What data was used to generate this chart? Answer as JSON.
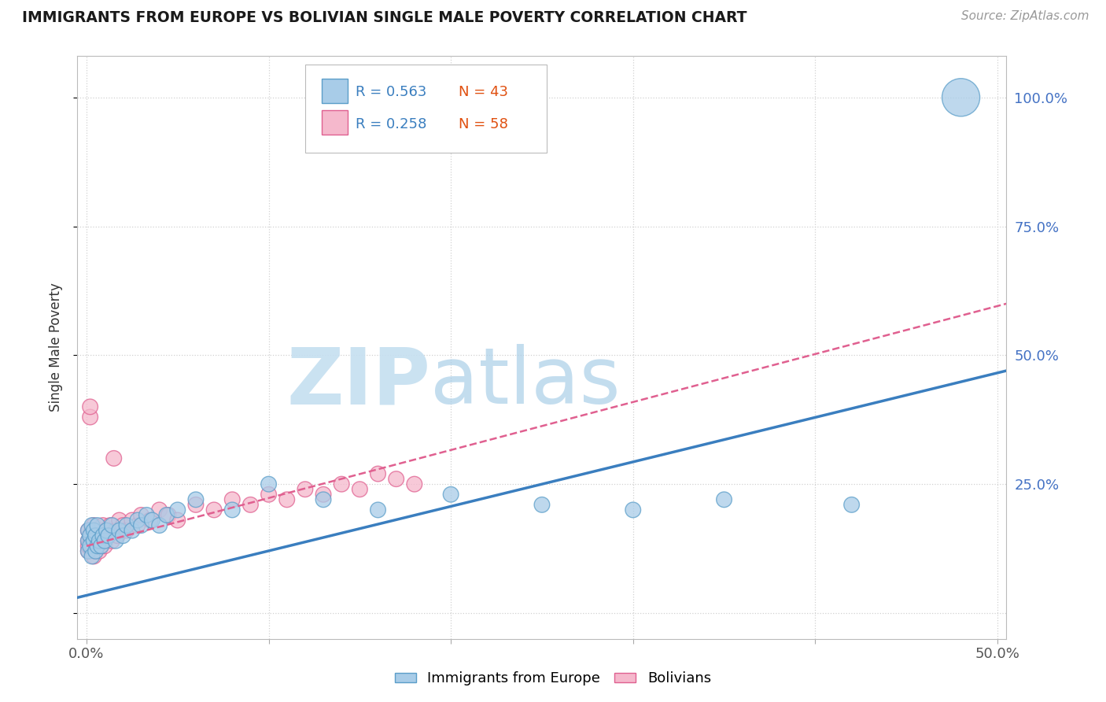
{
  "title": "IMMIGRANTS FROM EUROPE VS BOLIVIAN SINGLE MALE POVERTY CORRELATION CHART",
  "source": "Source: ZipAtlas.com",
  "ylabel": "Single Male Poverty",
  "xlim": [
    -0.005,
    0.505
  ],
  "ylim": [
    -0.05,
    1.08
  ],
  "background_color": "#ffffff",
  "grid_color": "#cccccc",
  "watermark_zip": "ZIP",
  "watermark_atlas": "atlas",
  "series": [
    {
      "name": "Immigrants from Europe",
      "R": 0.563,
      "N": 43,
      "color": "#a8cce8",
      "edge_color": "#5b9ec9",
      "line_color": "#3a7ebf",
      "line_style": "solid",
      "x": [
        0.001,
        0.001,
        0.001,
        0.002,
        0.002,
        0.003,
        0.003,
        0.004,
        0.004,
        0.005,
        0.005,
        0.006,
        0.006,
        0.007,
        0.008,
        0.009,
        0.01,
        0.011,
        0.012,
        0.014,
        0.016,
        0.018,
        0.02,
        0.022,
        0.025,
        0.028,
        0.03,
        0.033,
        0.036,
        0.04,
        0.044,
        0.05,
        0.06,
        0.08,
        0.1,
        0.13,
        0.16,
        0.2,
        0.25,
        0.3,
        0.35,
        0.42,
        0.48
      ],
      "y": [
        0.14,
        0.16,
        0.12,
        0.15,
        0.13,
        0.17,
        0.11,
        0.14,
        0.16,
        0.12,
        0.15,
        0.13,
        0.17,
        0.14,
        0.13,
        0.15,
        0.14,
        0.16,
        0.15,
        0.17,
        0.14,
        0.16,
        0.15,
        0.17,
        0.16,
        0.18,
        0.17,
        0.19,
        0.18,
        0.17,
        0.19,
        0.2,
        0.22,
        0.2,
        0.25,
        0.22,
        0.2,
        0.23,
        0.21,
        0.2,
        0.22,
        0.21,
        1.0
      ],
      "base_size": 200,
      "large_size": 1200,
      "trend_x": [
        -0.005,
        0.505
      ],
      "trend_y": [
        0.03,
        0.47
      ],
      "trend_lw": 2.5
    },
    {
      "name": "Bolivians",
      "R": 0.258,
      "N": 58,
      "color": "#f5b8cc",
      "edge_color": "#e06090",
      "line_color": "#e06090",
      "line_style": "dashed",
      "x": [
        0.001,
        0.001,
        0.001,
        0.001,
        0.002,
        0.002,
        0.002,
        0.003,
        0.003,
        0.003,
        0.003,
        0.004,
        0.004,
        0.004,
        0.005,
        0.005,
        0.005,
        0.006,
        0.006,
        0.007,
        0.007,
        0.007,
        0.008,
        0.008,
        0.009,
        0.009,
        0.01,
        0.01,
        0.011,
        0.012,
        0.013,
        0.014,
        0.015,
        0.016,
        0.017,
        0.018,
        0.02,
        0.022,
        0.025,
        0.028,
        0.03,
        0.035,
        0.04,
        0.045,
        0.05,
        0.06,
        0.07,
        0.08,
        0.09,
        0.1,
        0.11,
        0.12,
        0.13,
        0.14,
        0.15,
        0.16,
        0.17,
        0.18
      ],
      "y": [
        0.14,
        0.12,
        0.16,
        0.13,
        0.38,
        0.4,
        0.15,
        0.14,
        0.12,
        0.16,
        0.13,
        0.15,
        0.11,
        0.17,
        0.14,
        0.12,
        0.16,
        0.13,
        0.15,
        0.14,
        0.12,
        0.16,
        0.14,
        0.13,
        0.15,
        0.17,
        0.14,
        0.13,
        0.16,
        0.15,
        0.17,
        0.14,
        0.3,
        0.16,
        0.15,
        0.18,
        0.17,
        0.16,
        0.18,
        0.17,
        0.19,
        0.18,
        0.2,
        0.19,
        0.18,
        0.21,
        0.2,
        0.22,
        0.21,
        0.23,
        0.22,
        0.24,
        0.23,
        0.25,
        0.24,
        0.27,
        0.26,
        0.25
      ],
      "base_size": 200,
      "trend_x": [
        0.0,
        0.505
      ],
      "trend_y": [
        0.13,
        0.6
      ],
      "trend_lw": 1.8
    }
  ],
  "legend_entries": [
    {
      "label_r": "R = 0.563",
      "label_n": "N = 43",
      "color": "#a8cce8",
      "edge": "#5b9ec9",
      "text_color_r": "#3a7ebf",
      "text_color_n": "#e05010"
    },
    {
      "label_r": "R = 0.258",
      "label_n": "N = 58",
      "color": "#f5b8cc",
      "edge": "#e06090",
      "text_color_r": "#3a7ebf",
      "text_color_n": "#e05010"
    }
  ],
  "bottom_legend": [
    {
      "label": "Immigrants from Europe",
      "color": "#a8cce8",
      "edge": "#5b9ec9"
    },
    {
      "label": "Bolivians",
      "color": "#f5b8cc",
      "edge": "#e06090"
    }
  ]
}
